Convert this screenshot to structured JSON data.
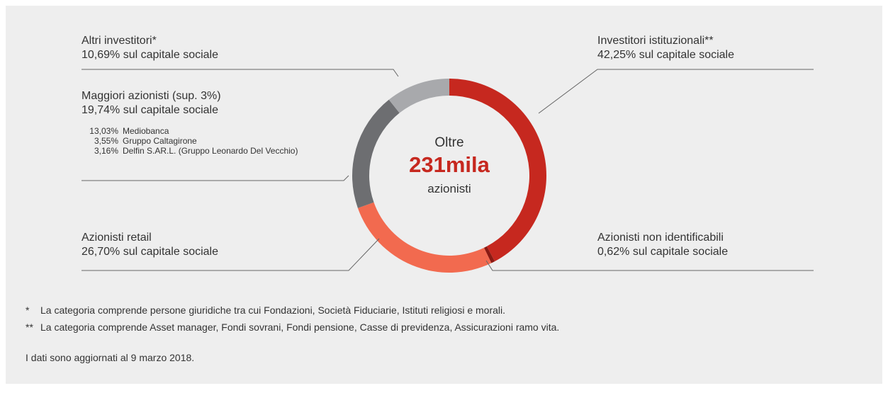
{
  "chart_data": {
    "type": "pie",
    "donut": true,
    "categories": [
      "Investitori istituzionali**",
      "Azionisti non identificabili",
      "Azionisti retail",
      "Maggiori azionisti (sup. 3%)",
      "Altri investitori*"
    ],
    "values": [
      42.25,
      0.62,
      26.7,
      19.74,
      10.69
    ],
    "value_labels": [
      "42,25% sul capitale sociale",
      "0,62% sul capitale sociale",
      "26,70% sul capitale sociale",
      "19,74% sul capitale sociale",
      "10,69% sul capitale sociale"
    ],
    "colors": [
      "#c6281f",
      "#8a1a13",
      "#f26a4f",
      "#6d6e71",
      "#a8a9ac"
    ],
    "breakdown": [
      {
        "name": "Mediobanca",
        "value": 13.03,
        "label": "13,03%"
      },
      {
        "name": "Gruppo Caltagirone",
        "value": 3.55,
        "label": "3,55%"
      },
      {
        "name": "Delfin S.AR.L. (Gruppo Leonardo Del Vecchio)",
        "value": 3.16,
        "label": "3,16%"
      }
    ],
    "center_text": [
      "Oltre",
      "231mila",
      "azionisti"
    ],
    "footnotes": [
      {
        "mark": "*",
        "text": "La categoria comprende persone giuridiche tra cui Fondazioni, Società Fiduciarie, Istituti religiosi e morali."
      },
      {
        "mark": "**",
        "text": "La categoria comprende Asset manager, Fondi sovrani, Fondi pensione, Casse di previdenza, Assicurazioni ramo vita."
      }
    ],
    "note": "I dati sono aggiornati al 9 marzo 2018."
  }
}
